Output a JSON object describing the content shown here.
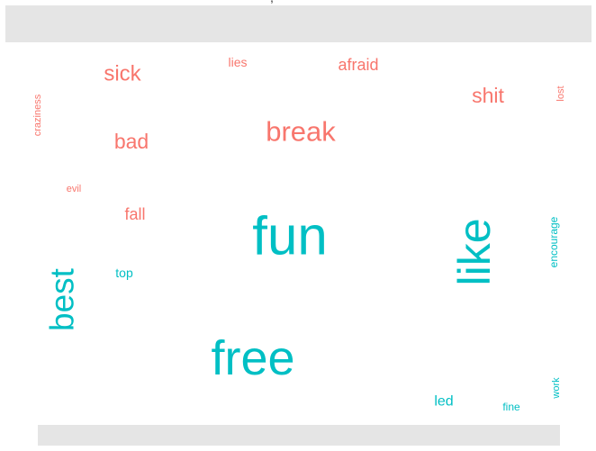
{
  "chart_data": {
    "type": "wordcloud",
    "title": "",
    "groups": [
      {
        "color": "#F8766D"
      },
      {
        "color": "#00BFC4"
      }
    ],
    "words": [
      {
        "text": "fun",
        "group": 1,
        "weight": 60,
        "rotated": false
      },
      {
        "text": "free",
        "group": 1,
        "weight": 54,
        "rotated": false
      },
      {
        "text": "like",
        "group": 1,
        "weight": 50,
        "rotated": true
      },
      {
        "text": "best",
        "group": 1,
        "weight": 37,
        "rotated": true
      },
      {
        "text": "encourage",
        "group": 1,
        "weight": 12,
        "rotated": true
      },
      {
        "text": "led",
        "group": 1,
        "weight": 16,
        "rotated": false
      },
      {
        "text": "top",
        "group": 1,
        "weight": 14,
        "rotated": false
      },
      {
        "text": "fine",
        "group": 1,
        "weight": 12,
        "rotated": false
      },
      {
        "text": "work",
        "group": 1,
        "weight": 11,
        "rotated": true
      },
      {
        "text": "break",
        "group": 0,
        "weight": 31,
        "rotated": false
      },
      {
        "text": "sick",
        "group": 0,
        "weight": 24,
        "rotated": false
      },
      {
        "text": "bad",
        "group": 0,
        "weight": 23,
        "rotated": false
      },
      {
        "text": "shit",
        "group": 0,
        "weight": 23,
        "rotated": false
      },
      {
        "text": "afraid",
        "group": 0,
        "weight": 18,
        "rotated": false
      },
      {
        "text": "fall",
        "group": 0,
        "weight": 18,
        "rotated": false
      },
      {
        "text": "lies",
        "group": 0,
        "weight": 14,
        "rotated": false
      },
      {
        "text": "lost",
        "group": 0,
        "weight": 11,
        "rotated": true
      },
      {
        "text": "craziness",
        "group": 0,
        "weight": 11,
        "rotated": true
      },
      {
        "text": "evil",
        "group": 0,
        "weight": 11,
        "rotated": false
      }
    ]
  }
}
